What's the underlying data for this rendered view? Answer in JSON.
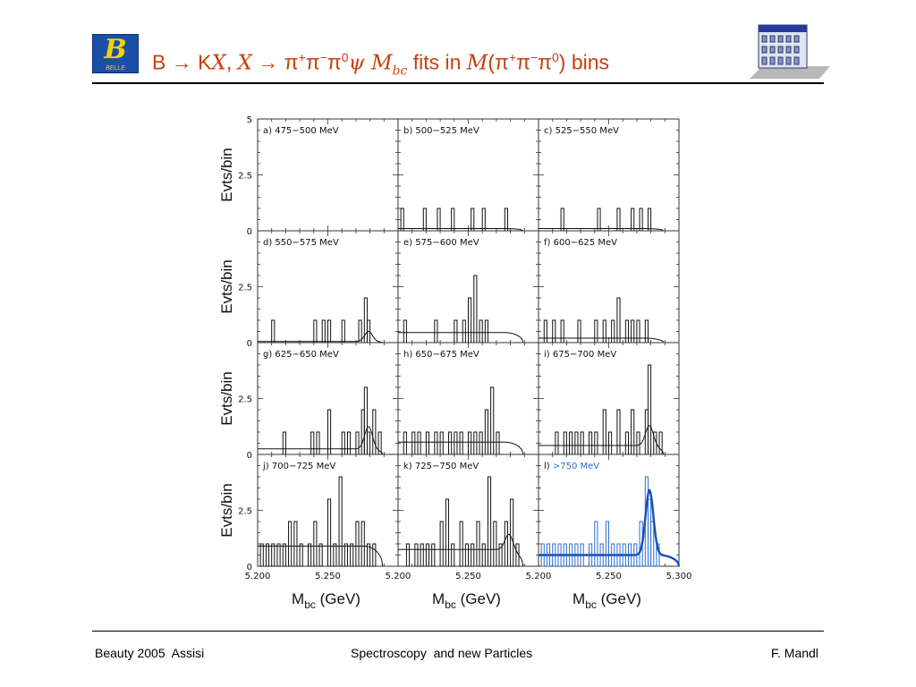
{
  "header": {
    "logo_text": "B",
    "logo_subtext": "BELLE",
    "title_parts": [
      "B → K",
      "X",
      ", ",
      "X",
      " → π",
      "+",
      "π",
      "−",
      "π",
      "0",
      "ψ ",
      "M",
      "bc",
      " fits in ",
      "M",
      "(π",
      "+",
      "π",
      "−",
      "π",
      "0",
      ") bins"
    ]
  },
  "footer": {
    "left": "Beauty 2005  Assisi",
    "center": "Spectroscopy  and new Particles",
    "right": "F. Mandl"
  },
  "colors": {
    "title": "#c8400f",
    "hist_black": "#111111",
    "hist_blue": "#2a6fd6",
    "fit_blue": "#1a4fb8"
  },
  "chart_data": {
    "type": "histogram-grid",
    "ylabel": "Evts/bin",
    "xlabel": "M",
    "xlabel_sub": "bc",
    "xlabel_unit": " (GeV)",
    "xlim": [
      5.2,
      5.3
    ],
    "ylim": [
      0,
      5
    ],
    "yticks": [
      0,
      2.5,
      5
    ],
    "ytick_labels": [
      "0",
      "2.5",
      "5"
    ],
    "xtick_labels": [
      "5.200",
      "5.250",
      "5.200",
      "5.250",
      "5.200",
      "5.250",
      "5.300"
    ],
    "bin_width_gev": 0.002,
    "panels": [
      {
        "label": "a) 475−500 MeV",
        "color": "black",
        "bins": [],
        "fit": null
      },
      {
        "label": "b) 500−525 MeV",
        "color": "black",
        "bins": [
          [
            5.202,
            1
          ],
          [
            5.218,
            1
          ],
          [
            5.228,
            1
          ],
          [
            5.238,
            1
          ],
          [
            5.252,
            1
          ],
          [
            5.26,
            1
          ],
          [
            5.276,
            1
          ]
        ],
        "fit": {
          "bg": 0.1,
          "peak": 0.0,
          "cut": 5.289
        }
      },
      {
        "label": "c) 525−550 MeV",
        "color": "black",
        "bins": [
          [
            5.216,
            1
          ],
          [
            5.242,
            1
          ],
          [
            5.256,
            1
          ],
          [
            5.266,
            1
          ],
          [
            5.272,
            1
          ],
          [
            5.278,
            1
          ]
        ],
        "fit": {
          "bg": 0.1,
          "peak": 0.0,
          "cut": 5.289
        }
      },
      {
        "label": "d) 550−575 MeV",
        "color": "black",
        "bins": [
          [
            5.21,
            1
          ],
          [
            5.24,
            1
          ],
          [
            5.246,
            1
          ],
          [
            5.25,
            1
          ],
          [
            5.26,
            1
          ],
          [
            5.272,
            1
          ],
          [
            5.276,
            2
          ],
          [
            5.278,
            1
          ]
        ],
        "fit": {
          "bg": 0.05,
          "peak": 0.45,
          "cut": 5.289
        }
      },
      {
        "label": "e) 575−600 MeV",
        "color": "black",
        "bins": [
          [
            5.204,
            1
          ],
          [
            5.226,
            1
          ],
          [
            5.24,
            1
          ],
          [
            5.246,
            1
          ],
          [
            5.25,
            2
          ],
          [
            5.254,
            3
          ],
          [
            5.258,
            1
          ],
          [
            5.262,
            1
          ]
        ],
        "fit": {
          "bg": 0.45,
          "peak": 0.0,
          "cut": 5.289
        }
      },
      {
        "label": "f) 600−625 MeV",
        "color": "black",
        "bins": [
          [
            5.204,
            1
          ],
          [
            5.21,
            1
          ],
          [
            5.216,
            1
          ],
          [
            5.228,
            1
          ],
          [
            5.24,
            1
          ],
          [
            5.246,
            1
          ],
          [
            5.252,
            1
          ],
          [
            5.256,
            2
          ],
          [
            5.262,
            1
          ],
          [
            5.266,
            1
          ],
          [
            5.27,
            1
          ],
          [
            5.276,
            1
          ]
        ],
        "fit": {
          "bg": 0.2,
          "peak": 0.0,
          "cut": 5.289
        }
      },
      {
        "label": "g) 625−650 MeV",
        "color": "black",
        "bins": [
          [
            5.218,
            1
          ],
          [
            5.238,
            1
          ],
          [
            5.242,
            1
          ],
          [
            5.25,
            2
          ],
          [
            5.26,
            1
          ],
          [
            5.264,
            1
          ],
          [
            5.27,
            1
          ],
          [
            5.274,
            2
          ],
          [
            5.276,
            3
          ],
          [
            5.278,
            1
          ],
          [
            5.282,
            2
          ],
          [
            5.286,
            1
          ]
        ],
        "fit": {
          "bg": 0.25,
          "peak": 1.0,
          "cut": 5.289
        }
      },
      {
        "label": "h) 650−675 MeV",
        "color": "black",
        "bins": [
          [
            5.204,
            1
          ],
          [
            5.21,
            1
          ],
          [
            5.214,
            1
          ],
          [
            5.22,
            1
          ],
          [
            5.226,
            1
          ],
          [
            5.23,
            1
          ],
          [
            5.236,
            1
          ],
          [
            5.24,
            1
          ],
          [
            5.244,
            1
          ],
          [
            5.25,
            1
          ],
          [
            5.254,
            1
          ],
          [
            5.258,
            1
          ],
          [
            5.262,
            2
          ],
          [
            5.266,
            3
          ],
          [
            5.27,
            1
          ]
        ],
        "fit": {
          "bg": 0.55,
          "peak": 0.0,
          "cut": 5.289
        }
      },
      {
        "label": "i) 675−700 MeV",
        "color": "black",
        "bins": [
          [
            5.212,
            1
          ],
          [
            5.218,
            1
          ],
          [
            5.222,
            1
          ],
          [
            5.226,
            1
          ],
          [
            5.23,
            1
          ],
          [
            5.236,
            1
          ],
          [
            5.24,
            1
          ],
          [
            5.246,
            2
          ],
          [
            5.25,
            1
          ],
          [
            5.256,
            2
          ],
          [
            5.262,
            1
          ],
          [
            5.266,
            2
          ],
          [
            5.27,
            1
          ],
          [
            5.276,
            2
          ],
          [
            5.278,
            4
          ],
          [
            5.282,
            1
          ],
          [
            5.286,
            1
          ]
        ],
        "fit": {
          "bg": 0.4,
          "peak": 0.9,
          "cut": 5.289
        }
      },
      {
        "label": "j) 700−725 MeV",
        "color": "black",
        "bins": [
          [
            5.202,
            1
          ],
          [
            5.206,
            1
          ],
          [
            5.21,
            1
          ],
          [
            5.214,
            1
          ],
          [
            5.218,
            1
          ],
          [
            5.222,
            2
          ],
          [
            5.226,
            2
          ],
          [
            5.23,
            1
          ],
          [
            5.236,
            1
          ],
          [
            5.24,
            2
          ],
          [
            5.244,
            1
          ],
          [
            5.25,
            3
          ],
          [
            5.254,
            1
          ],
          [
            5.258,
            4
          ],
          [
            5.262,
            1
          ],
          [
            5.266,
            1
          ],
          [
            5.27,
            2
          ],
          [
            5.274,
            2
          ],
          [
            5.278,
            1
          ],
          [
            5.282,
            1
          ]
        ],
        "fit": {
          "bg": 0.9,
          "peak": 0.0,
          "cut": 5.289
        }
      },
      {
        "label": "k) 725−750 MeV",
        "color": "black",
        "bins": [
          [
            5.206,
            1
          ],
          [
            5.212,
            1
          ],
          [
            5.216,
            1
          ],
          [
            5.22,
            1
          ],
          [
            5.224,
            1
          ],
          [
            5.23,
            2
          ],
          [
            5.234,
            3
          ],
          [
            5.238,
            1
          ],
          [
            5.244,
            2
          ],
          [
            5.248,
            1
          ],
          [
            5.252,
            1
          ],
          [
            5.256,
            2
          ],
          [
            5.26,
            1
          ],
          [
            5.264,
            4
          ],
          [
            5.268,
            2
          ],
          [
            5.272,
            1
          ],
          [
            5.276,
            2
          ],
          [
            5.28,
            3
          ],
          [
            5.284,
            1
          ]
        ],
        "fit": {
          "bg": 0.75,
          "peak": 0.7,
          "cut": 5.289
        }
      },
      {
        "label": "l) >750 MeV",
        "label_prefix": "l) ",
        "label_highlight": ">750 MeV",
        "color": "blue",
        "bins": [
          [
            5.202,
            1
          ],
          [
            5.206,
            1
          ],
          [
            5.21,
            1
          ],
          [
            5.214,
            1
          ],
          [
            5.218,
            1
          ],
          [
            5.222,
            1
          ],
          [
            5.226,
            1
          ],
          [
            5.23,
            1
          ],
          [
            5.236,
            1
          ],
          [
            5.24,
            2
          ],
          [
            5.244,
            1
          ],
          [
            5.248,
            2
          ],
          [
            5.252,
            1
          ],
          [
            5.256,
            1
          ],
          [
            5.26,
            1
          ],
          [
            5.264,
            1
          ],
          [
            5.268,
            1
          ],
          [
            5.272,
            2
          ],
          [
            5.276,
            4
          ],
          [
            5.278,
            3
          ],
          [
            5.28,
            2
          ],
          [
            5.284,
            1
          ]
        ],
        "fit": {
          "bg": 0.5,
          "peak": 2.9,
          "cut": 5.3
        }
      }
    ]
  }
}
